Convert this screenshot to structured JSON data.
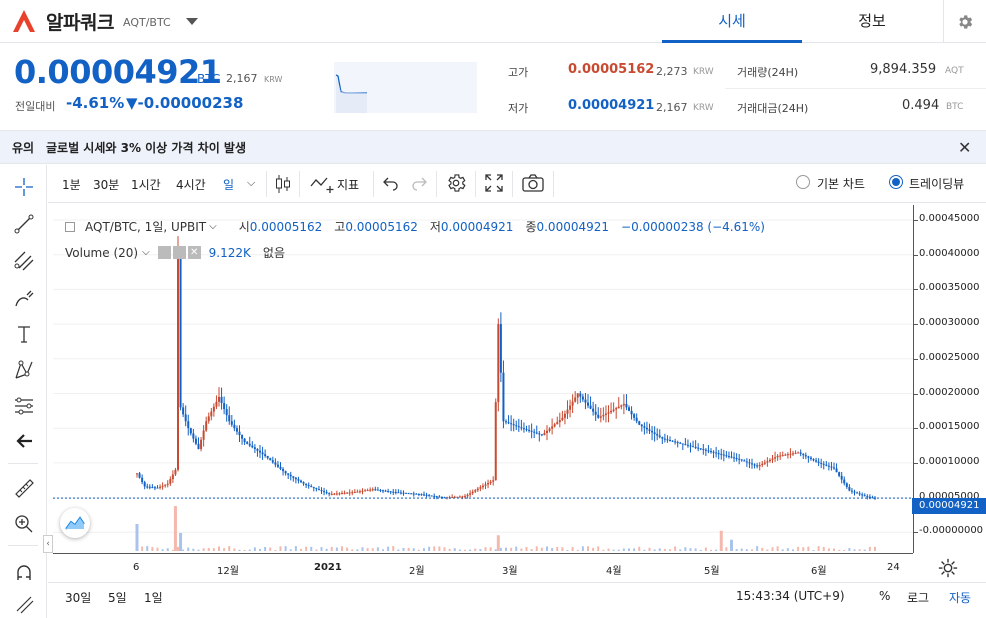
{
  "header": {
    "coin_name": "알파쿼크",
    "pair": "AQT/BTC",
    "tab_market": "시세",
    "tab_info": "정보"
  },
  "price": {
    "value": "0.00004921",
    "unit": "BTC",
    "krw": "2,167",
    "krw_unit": "KRW",
    "change_label": "전일대비",
    "change_pct": "-4.61%",
    "change_val": "▼-0.00000238"
  },
  "stats": {
    "high_label": "고가",
    "high_value": "0.00005162",
    "high_krw": "2,273",
    "low_label": "저가",
    "low_value": "0.00004921",
    "low_krw": "2,167",
    "krw_unit": "KRW",
    "vol_label": "거래량(24H)",
    "vol_value": "9,894.359",
    "vol_unit": "AQT",
    "amt_label": "거래대금(24H)",
    "amt_value": "0.494",
    "amt_unit": "BTC"
  },
  "notice": {
    "tag": "유의",
    "text": "글로벌 시세와 3% 이상 가격 차이 발생"
  },
  "toolbar": {
    "intervals": [
      "1분",
      "30분",
      "1시간",
      "4시간",
      "일"
    ],
    "indicator_label": "지표",
    "view_basic": "기본 차트",
    "view_tv": "트레이딩뷰"
  },
  "legend": {
    "symbol": "AQT/BTC, 1일, UPBIT",
    "open_label": "시",
    "open": "0.00005162",
    "high_label": "고",
    "high": "0.00005162",
    "low_label": "저",
    "low": "0.00004921",
    "close_label": "종",
    "close": "0.00004921",
    "change": "−0.00000238 (−4.61%)",
    "volume_label": "Volume (20)",
    "volume_value": "9.122K",
    "volume_extra": "없음"
  },
  "bottom": {
    "ranges": [
      "30일",
      "5일",
      "1일"
    ],
    "time": "15:43:34 (UTC+9)",
    "pct": "%",
    "log": "로그",
    "auto": "자동"
  },
  "colors": {
    "up": "#c84a31",
    "down": "#1261c4",
    "accent": "#1261c4"
  },
  "chart_data": {
    "type": "candlestick",
    "y_ticks": [
      "0.00045000",
      "0.00040000",
      "0.00035000",
      "0.00030000",
      "0.00025000",
      "0.00020000",
      "0.00015000",
      "0.00010000",
      "0.00005000",
      "-0.00000000"
    ],
    "x_ticks": [
      "6",
      "12월",
      "2021",
      "2월",
      "3월",
      "4월",
      "5월",
      "6월",
      "24"
    ],
    "current_price_label": "0.00004921",
    "ylim": [
      -1e-05,
      0.000475
    ],
    "close_path": [
      {
        "d": 0,
        "v": 8.5e-05
      },
      {
        "d": 3,
        "v": 6.6e-05
      },
      {
        "d": 8,
        "v": 6.4e-05
      },
      {
        "d": 12,
        "v": 7e-05
      },
      {
        "d": 15,
        "v": 9e-05
      },
      {
        "d": 16,
        "v": 0.0004
      },
      {
        "d": 17,
        "v": 0.00018
      },
      {
        "d": 20,
        "v": 0.00015
      },
      {
        "d": 24,
        "v": 0.00012
      },
      {
        "d": 27,
        "v": 0.00016
      },
      {
        "d": 32,
        "v": 0.000195
      },
      {
        "d": 36,
        "v": 0.00016
      },
      {
        "d": 42,
        "v": 0.00013
      },
      {
        "d": 50,
        "v": 0.00011
      },
      {
        "d": 58,
        "v": 8.5e-05
      },
      {
        "d": 66,
        "v": 6.8e-05
      },
      {
        "d": 75,
        "v": 5.5e-05
      },
      {
        "d": 85,
        "v": 5.8e-05
      },
      {
        "d": 92,
        "v": 6.2e-05
      },
      {
        "d": 100,
        "v": 5.8e-05
      },
      {
        "d": 110,
        "v": 5.5e-05
      },
      {
        "d": 120,
        "v": 5e-05
      },
      {
        "d": 128,
        "v": 5.2e-05
      },
      {
        "d": 134,
        "v": 6.5e-05
      },
      {
        "d": 139,
        "v": 7.5e-05
      },
      {
        "d": 141,
        "v": 0.0003
      },
      {
        "d": 143,
        "v": 0.00016
      },
      {
        "d": 150,
        "v": 0.00015
      },
      {
        "d": 158,
        "v": 0.00014
      },
      {
        "d": 166,
        "v": 0.000165
      },
      {
        "d": 172,
        "v": 0.0002
      },
      {
        "d": 180,
        "v": 0.000165
      },
      {
        "d": 190,
        "v": 0.000185
      },
      {
        "d": 196,
        "v": 0.000155
      },
      {
        "d": 205,
        "v": 0.000135
      },
      {
        "d": 215,
        "v": 0.000125
      },
      {
        "d": 225,
        "v": 0.000115
      },
      {
        "d": 235,
        "v": 0.000105
      },
      {
        "d": 242,
        "v": 9.5e-05
      },
      {
        "d": 250,
        "v": 0.00011
      },
      {
        "d": 258,
        "v": 0.000115
      },
      {
        "d": 266,
        "v": 0.0001
      },
      {
        "d": 272,
        "v": 9.2e-05
      },
      {
        "d": 278,
        "v": 6e-05
      },
      {
        "d": 284,
        "v": 5.2e-05
      },
      {
        "d": 288,
        "v": 4.9e-05
      }
    ],
    "volume_spikes": [
      {
        "d": 0,
        "v": 0.6,
        "up": false
      },
      {
        "d": 15,
        "v": 1.0,
        "up": true
      },
      {
        "d": 17,
        "v": 0.4,
        "up": false
      },
      {
        "d": 141,
        "v": 0.35,
        "up": true
      },
      {
        "d": 228,
        "v": 0.45,
        "up": true
      },
      {
        "d": 232,
        "v": 0.25,
        "up": false
      }
    ]
  }
}
